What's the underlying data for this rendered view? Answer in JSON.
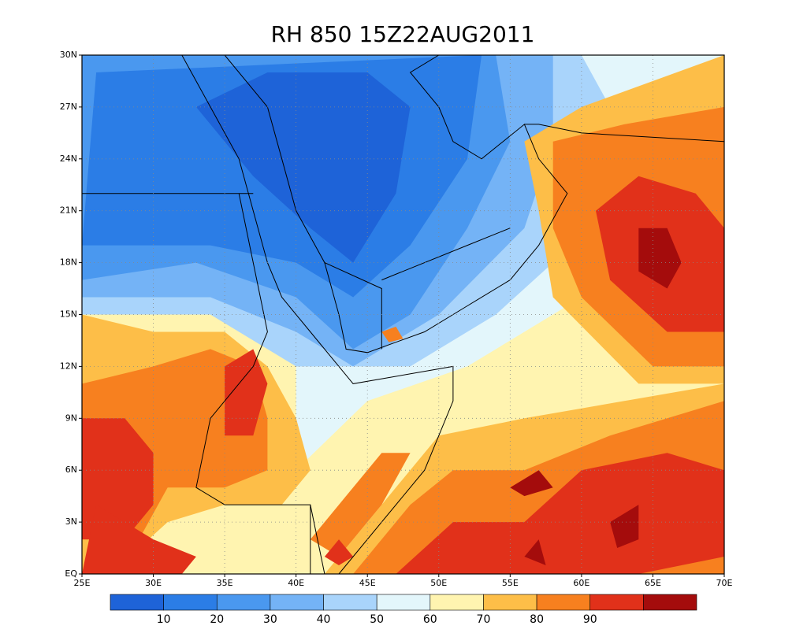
{
  "title": "RH 850 15Z22AUG2011",
  "map": {
    "xlim": [
      25,
      70
    ],
    "ylim": [
      0,
      30
    ],
    "xticks": [
      {
        "value": 25,
        "label": "25E"
      },
      {
        "value": 30,
        "label": "30E"
      },
      {
        "value": 35,
        "label": "35E"
      },
      {
        "value": 40,
        "label": "40E"
      },
      {
        "value": 45,
        "label": "45E"
      },
      {
        "value": 50,
        "label": "50E"
      },
      {
        "value": 55,
        "label": "55E"
      },
      {
        "value": 60,
        "label": "60E"
      },
      {
        "value": 65,
        "label": "65E"
      },
      {
        "value": 70,
        "label": "70E"
      }
    ],
    "yticks": [
      {
        "value": 0,
        "label": "EQ"
      },
      {
        "value": 3,
        "label": "3N"
      },
      {
        "value": 6,
        "label": "6N"
      },
      {
        "value": 9,
        "label": "9N"
      },
      {
        "value": 12,
        "label": "12N"
      },
      {
        "value": 15,
        "label": "15N"
      },
      {
        "value": 18,
        "label": "18N"
      },
      {
        "value": 21,
        "label": "21N"
      },
      {
        "value": 24,
        "label": "24N"
      },
      {
        "value": 27,
        "label": "27N"
      },
      {
        "value": 30,
        "label": "30N"
      }
    ],
    "grid": true
  },
  "colorbar": {
    "levels": [
      10,
      20,
      30,
      40,
      50,
      60,
      70,
      80,
      90
    ],
    "colors": [
      "#1e63d8",
      "#2b7de6",
      "#4a98ef",
      "#74b3f6",
      "#a9d4fb",
      "#e3f6fb",
      "#fff4b0",
      "#fdbe48",
      "#f7801f",
      "#e1311a",
      "#a40c0c"
    ]
  }
}
